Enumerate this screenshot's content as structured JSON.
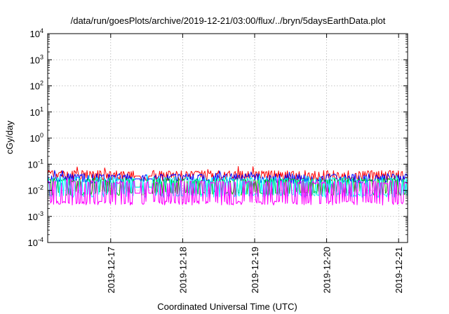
{
  "chart_data": {
    "type": "line",
    "title": "/data/run/goesPlots/archive/2019-12-21/03:00/flux/../bryn/5daysEarthData.plot",
    "xlabel": "Coordinated Universal Time (UTC)",
    "ylabel": "cGy/day",
    "y_scale": "log",
    "ylim": [
      0.0001,
      10000
    ],
    "y_ticks": [
      {
        "value": 10000,
        "base": "10",
        "exp": "4"
      },
      {
        "value": 1000,
        "base": "10",
        "exp": "3"
      },
      {
        "value": 100,
        "base": "10",
        "exp": "2"
      },
      {
        "value": 10,
        "base": "10",
        "exp": "1"
      },
      {
        "value": 1,
        "base": "10",
        "exp": "0"
      },
      {
        "value": 0.1,
        "base": "10",
        "exp": "-1"
      },
      {
        "value": 0.01,
        "base": "10",
        "exp": "-2"
      },
      {
        "value": 0.001,
        "base": "10",
        "exp": "-3"
      },
      {
        "value": 0.0001,
        "base": "10",
        "exp": "-4"
      }
    ],
    "x_range_days": [
      "2019-12-16T03:00",
      "2019-12-21T03:00"
    ],
    "x_ticks": [
      "2019-12-17",
      "2019-12-18",
      "2019-12-19",
      "2019-12-20",
      "2019-12-21"
    ],
    "grid": true,
    "data_gaps": [
      [
        "2019-12-17T08:00",
        "2019-12-17T10:00"
      ],
      [
        "2019-12-17T12:30",
        "2019-12-17T14:00"
      ]
    ],
    "series": [
      {
        "color": "#ff0000",
        "upper": 0.05,
        "lower": 0.025,
        "spike_max": 0.085
      },
      {
        "color": "#0000ff",
        "upper": 0.038,
        "lower": 0.02,
        "spike_max": 0.06
      },
      {
        "color": "#00b400",
        "upper": 0.025,
        "lower": 0.007,
        "spike_max": 0.035
      },
      {
        "color": "#00ffff",
        "upper": 0.028,
        "lower": 0.006,
        "spike_max": 0.04
      },
      {
        "color": "#ff00ff",
        "upper": 0.02,
        "lower": 0.003,
        "spike_max": 0.03
      }
    ]
  }
}
